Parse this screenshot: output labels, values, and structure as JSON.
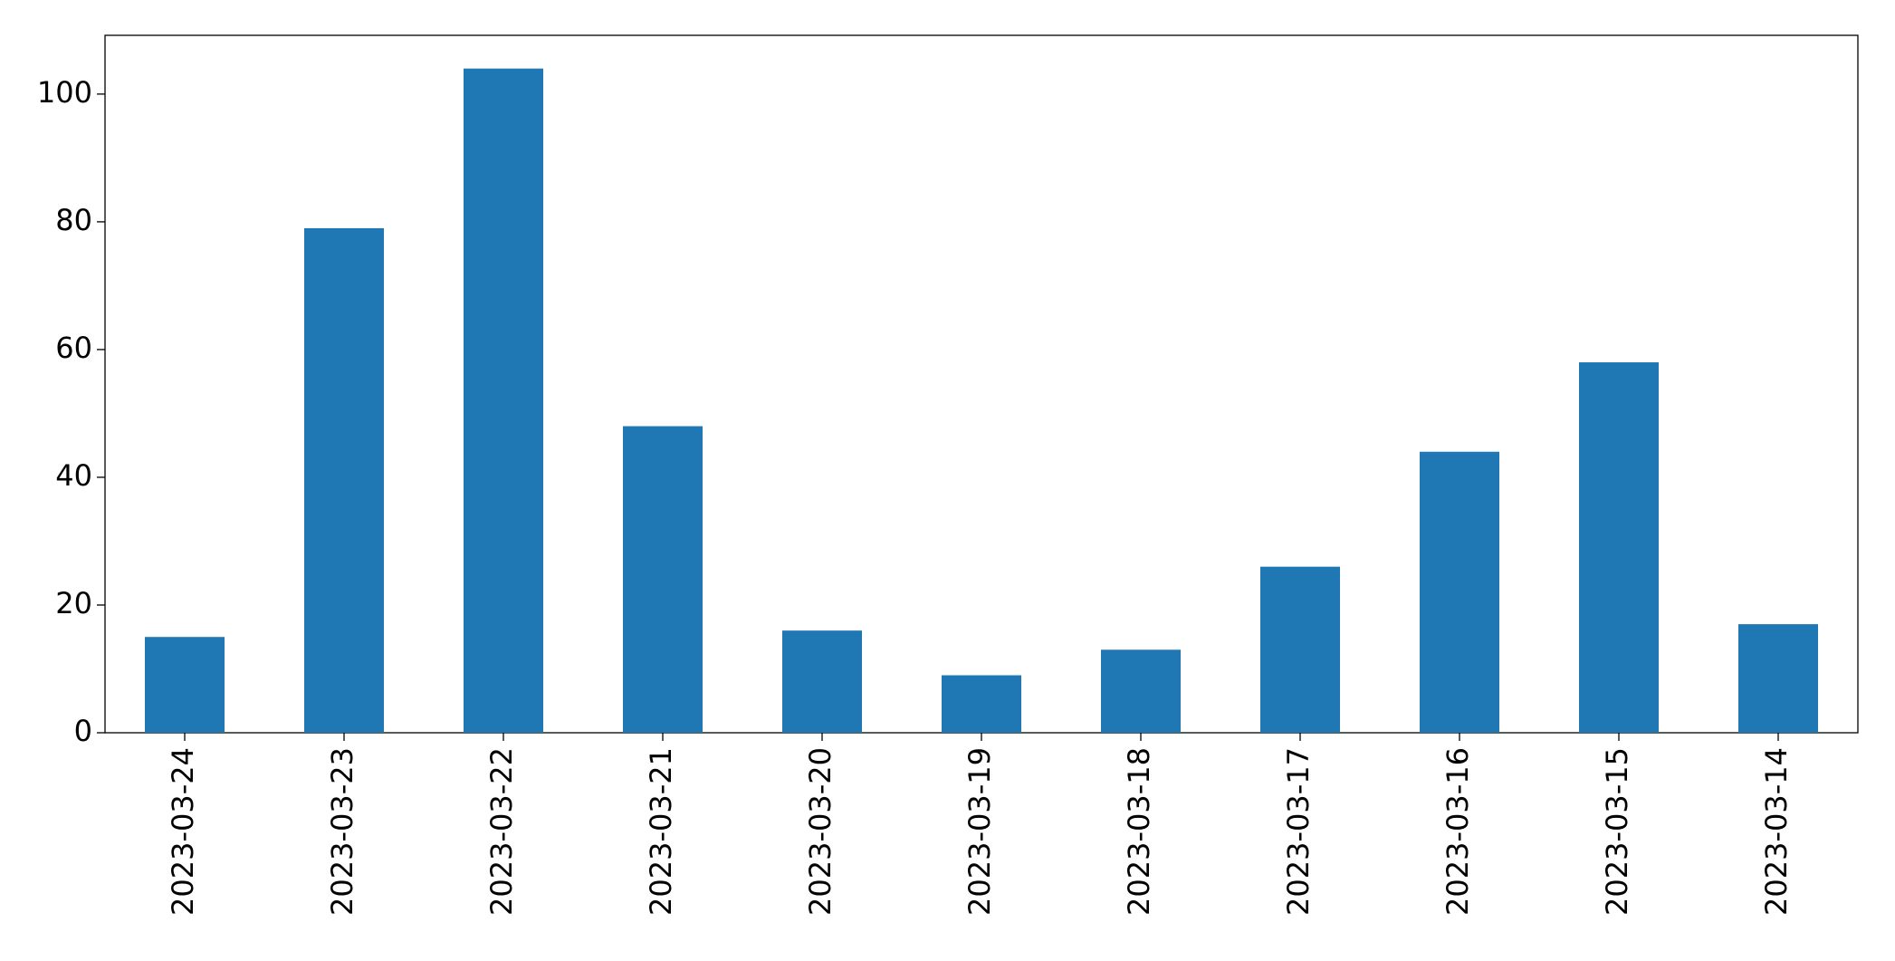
{
  "chart_data": {
    "type": "bar",
    "categories": [
      "2023-03-24",
      "2023-03-23",
      "2023-03-22",
      "2023-03-21",
      "2023-03-20",
      "2023-03-19",
      "2023-03-18",
      "2023-03-17",
      "2023-03-16",
      "2023-03-15",
      "2023-03-14"
    ],
    "values": [
      15,
      79,
      104,
      48,
      16,
      9,
      13,
      26,
      44,
      58,
      17
    ],
    "color": "#1f77b4",
    "ylim": [
      0,
      109.2
    ],
    "yticks": [
      0,
      20,
      40,
      60,
      80,
      100
    ],
    "grid": false
  }
}
